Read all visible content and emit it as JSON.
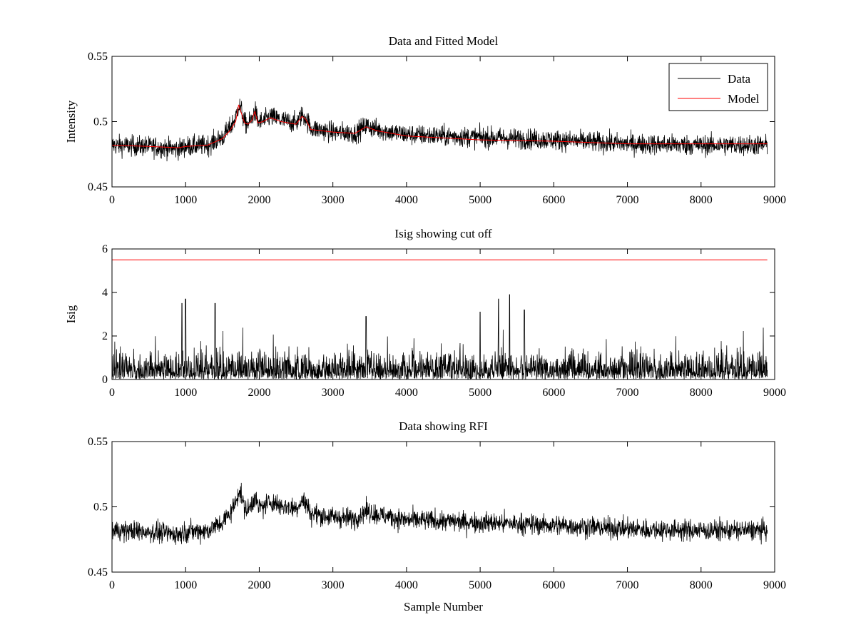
{
  "figure": {
    "background": "#ffffff"
  },
  "chart_data": [
    {
      "type": "line",
      "title": "Data and Fitted Model",
      "xlabel": "",
      "ylabel": "Intensity",
      "xlim": [
        0,
        9000
      ],
      "ylim": [
        0.45,
        0.55
      ],
      "xticks": [
        0,
        1000,
        2000,
        3000,
        4000,
        5000,
        6000,
        7000,
        8000,
        9000
      ],
      "yticks": [
        0.45,
        0.5,
        0.55
      ],
      "ytick_labels": [
        "0.45",
        "0.5",
        "0.55"
      ],
      "grid": false,
      "legend": {
        "position": "top-right"
      },
      "series": [
        {
          "name": "Data",
          "color": "#000000",
          "noise": 0.0055,
          "x": [
            0,
            500,
            900,
            1000,
            1300,
            1500,
            1600,
            1680,
            1720,
            1760,
            1800,
            1850,
            1900,
            1940,
            1980,
            2050,
            2150,
            2300,
            2500,
            2580,
            2630,
            2700,
            3000,
            3300,
            3450,
            3600,
            4000,
            5000,
            6000,
            7000,
            8000,
            8900
          ],
          "values": [
            0.482,
            0.481,
            0.479,
            0.481,
            0.482,
            0.488,
            0.495,
            0.503,
            0.513,
            0.508,
            0.499,
            0.498,
            0.502,
            0.509,
            0.5,
            0.5,
            0.504,
            0.501,
            0.499,
            0.505,
            0.503,
            0.495,
            0.492,
            0.491,
            0.497,
            0.494,
            0.49,
            0.488,
            0.486,
            0.483,
            0.482,
            0.482
          ]
        },
        {
          "name": "Model",
          "color": "#ff0000",
          "noise": 0,
          "x": [
            0,
            500,
            900,
            1000,
            1300,
            1500,
            1600,
            1680,
            1720,
            1760,
            1800,
            1850,
            1900,
            1940,
            1980,
            2050,
            2150,
            2300,
            2500,
            2580,
            2630,
            2700,
            3000,
            3300,
            3450,
            3600,
            4000,
            5000,
            6000,
            7000,
            8000,
            8900
          ],
          "values": [
            0.482,
            0.481,
            0.48,
            0.481,
            0.482,
            0.487,
            0.493,
            0.5,
            0.513,
            0.506,
            0.499,
            0.498,
            0.501,
            0.508,
            0.499,
            0.5,
            0.503,
            0.5,
            0.498,
            0.504,
            0.502,
            0.494,
            0.492,
            0.491,
            0.496,
            0.493,
            0.489,
            0.486,
            0.485,
            0.483,
            0.483,
            0.483
          ]
        }
      ]
    },
    {
      "type": "line",
      "title": "Isig showing cut off",
      "xlabel": "",
      "ylabel": "Isig",
      "xlim": [
        0,
        9000
      ],
      "ylim": [
        0,
        6
      ],
      "xticks": [
        0,
        1000,
        2000,
        3000,
        4000,
        5000,
        6000,
        7000,
        8000,
        9000
      ],
      "yticks": [
        0,
        2,
        4,
        6
      ],
      "ytick_labels": [
        "0",
        "2",
        "4",
        "6"
      ],
      "grid": false,
      "series": [
        {
          "color": "#000000",
          "kind": "abs-noise",
          "x": [
            0,
            8900
          ],
          "values": [
            0.8,
            0.8
          ],
          "spread": 0.8,
          "peaks": [
            [
              950,
              3.5
            ],
            [
              1000,
              3.7
            ],
            [
              1400,
              3.5
            ],
            [
              3450,
              2.9
            ],
            [
              5000,
              3.1
            ],
            [
              5250,
              3.7
            ],
            [
              5400,
              3.9
            ],
            [
              5600,
              3.2
            ]
          ]
        },
        {
          "color": "#ff0000",
          "kind": "line",
          "x": [
            0,
            8900
          ],
          "values": [
            5.5,
            5.5
          ]
        }
      ]
    },
    {
      "type": "line",
      "title": "Data showing RFI",
      "xlabel": "Sample Number",
      "ylabel": "",
      "xlim": [
        0,
        9000
      ],
      "ylim": [
        0.45,
        0.55
      ],
      "xticks": [
        0,
        1000,
        2000,
        3000,
        4000,
        5000,
        6000,
        7000,
        8000,
        9000
      ],
      "yticks": [
        0.45,
        0.5,
        0.55
      ],
      "ytick_labels": [
        "0.45",
        "0.5",
        "0.55"
      ],
      "grid": false,
      "series": [
        {
          "color": "#000000",
          "noise": 0.0055,
          "x": [
            0,
            500,
            900,
            1000,
            1300,
            1500,
            1600,
            1680,
            1720,
            1760,
            1800,
            1850,
            1900,
            1940,
            1980,
            2050,
            2150,
            2300,
            2500,
            2580,
            2630,
            2700,
            3000,
            3300,
            3450,
            3600,
            4000,
            5000,
            6000,
            7000,
            8000,
            8900
          ],
          "values": [
            0.482,
            0.481,
            0.479,
            0.481,
            0.482,
            0.488,
            0.495,
            0.503,
            0.513,
            0.508,
            0.499,
            0.498,
            0.502,
            0.509,
            0.5,
            0.5,
            0.504,
            0.501,
            0.499,
            0.505,
            0.503,
            0.495,
            0.492,
            0.491,
            0.497,
            0.494,
            0.49,
            0.488,
            0.486,
            0.483,
            0.482,
            0.482
          ]
        }
      ]
    }
  ]
}
